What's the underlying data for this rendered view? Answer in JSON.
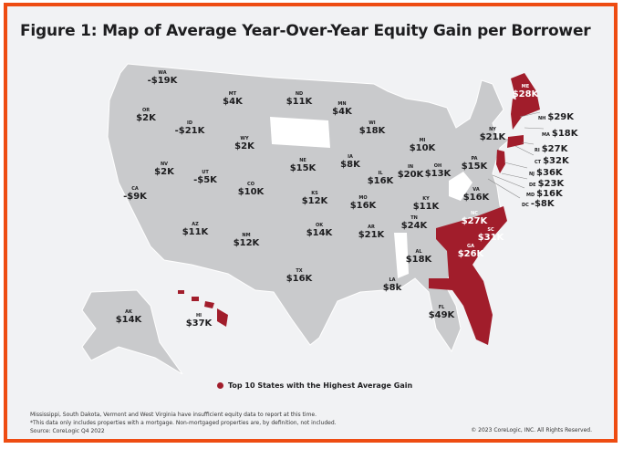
{
  "title": "Figure 1: Map of Average Year-Over-Year Equity Gain per Borrower",
  "colors": {
    "highlight": "#a11d2b",
    "base": "#c9cacc",
    "no_data": "#ffffff",
    "border": "#ee4c12"
  },
  "states": [
    {
      "abbr": "WA",
      "value": "-$19K"
    },
    {
      "abbr": "OR",
      "value": "$2K"
    },
    {
      "abbr": "ID",
      "value": "-$21K"
    },
    {
      "abbr": "MT",
      "value": "$4K"
    },
    {
      "abbr": "ND",
      "value": "$11K"
    },
    {
      "abbr": "MN",
      "value": "$4K"
    },
    {
      "abbr": "WI",
      "value": "$18K"
    },
    {
      "abbr": "MI",
      "value": "$10K"
    },
    {
      "abbr": "WY",
      "value": "$2K"
    },
    {
      "abbr": "NV",
      "value": "$2K"
    },
    {
      "abbr": "UT",
      "value": "-$5K"
    },
    {
      "abbr": "CA",
      "value": "-$9K"
    },
    {
      "abbr": "CO",
      "value": "$10K"
    },
    {
      "abbr": "NE",
      "value": "$15K"
    },
    {
      "abbr": "IA",
      "value": "$8K"
    },
    {
      "abbr": "IL",
      "value": "$16K"
    },
    {
      "abbr": "IN",
      "value": "$20K"
    },
    {
      "abbr": "OH",
      "value": "$13K"
    },
    {
      "abbr": "PA",
      "value": "$15K"
    },
    {
      "abbr": "NY",
      "value": "$21K"
    },
    {
      "abbr": "KS",
      "value": "$12K"
    },
    {
      "abbr": "MO",
      "value": "$16K"
    },
    {
      "abbr": "KY",
      "value": "$11K"
    },
    {
      "abbr": "VA",
      "value": "$16K"
    },
    {
      "abbr": "TN",
      "value": "$24K"
    },
    {
      "abbr": "NC",
      "value": "$27K"
    },
    {
      "abbr": "SC",
      "value": "$31K"
    },
    {
      "abbr": "GA",
      "value": "$26K"
    },
    {
      "abbr": "AL",
      "value": "$18K"
    },
    {
      "abbr": "AR",
      "value": "$21K"
    },
    {
      "abbr": "OK",
      "value": "$14K"
    },
    {
      "abbr": "NM",
      "value": "$12K"
    },
    {
      "abbr": "AZ",
      "value": "$11K"
    },
    {
      "abbr": "TX",
      "value": "$16K"
    },
    {
      "abbr": "LA",
      "value": "$8k"
    },
    {
      "abbr": "FL",
      "value": "$49K"
    },
    {
      "abbr": "AK",
      "value": "$14K"
    },
    {
      "abbr": "HI",
      "value": "$37K"
    },
    {
      "abbr": "ME",
      "value": "$28K"
    }
  ],
  "northeast_callouts": [
    {
      "abbr": "NH",
      "value": "$29K"
    },
    {
      "abbr": "MA",
      "value": "$18K"
    },
    {
      "abbr": "RI",
      "value": "$27K"
    },
    {
      "abbr": "CT",
      "value": "$32K"
    },
    {
      "abbr": "NJ",
      "value": "$36K"
    },
    {
      "abbr": "DE",
      "value": "$23K"
    },
    {
      "abbr": "MD",
      "value": "$16K"
    },
    {
      "abbr": "DC",
      "value": "-$8K"
    }
  ],
  "top10": [
    "ME",
    "NH",
    "RI",
    "CT",
    "NJ",
    "NC",
    "SC",
    "GA",
    "FL",
    "HI"
  ],
  "legend": "Top 10 States with the Highest Average Gain",
  "notes": [
    "Mississippi, South Dakota, Vermont and West Virginia  have insufficient equity data to report at this time.",
    "*This data only includes properties with a mortgage. Non-mortgaged properties are, by definition, not included.",
    "Source: CoreLogic Q4 2022"
  ],
  "copyright": "© 2023 CoreLogic, INC. All Rights Reserved."
}
